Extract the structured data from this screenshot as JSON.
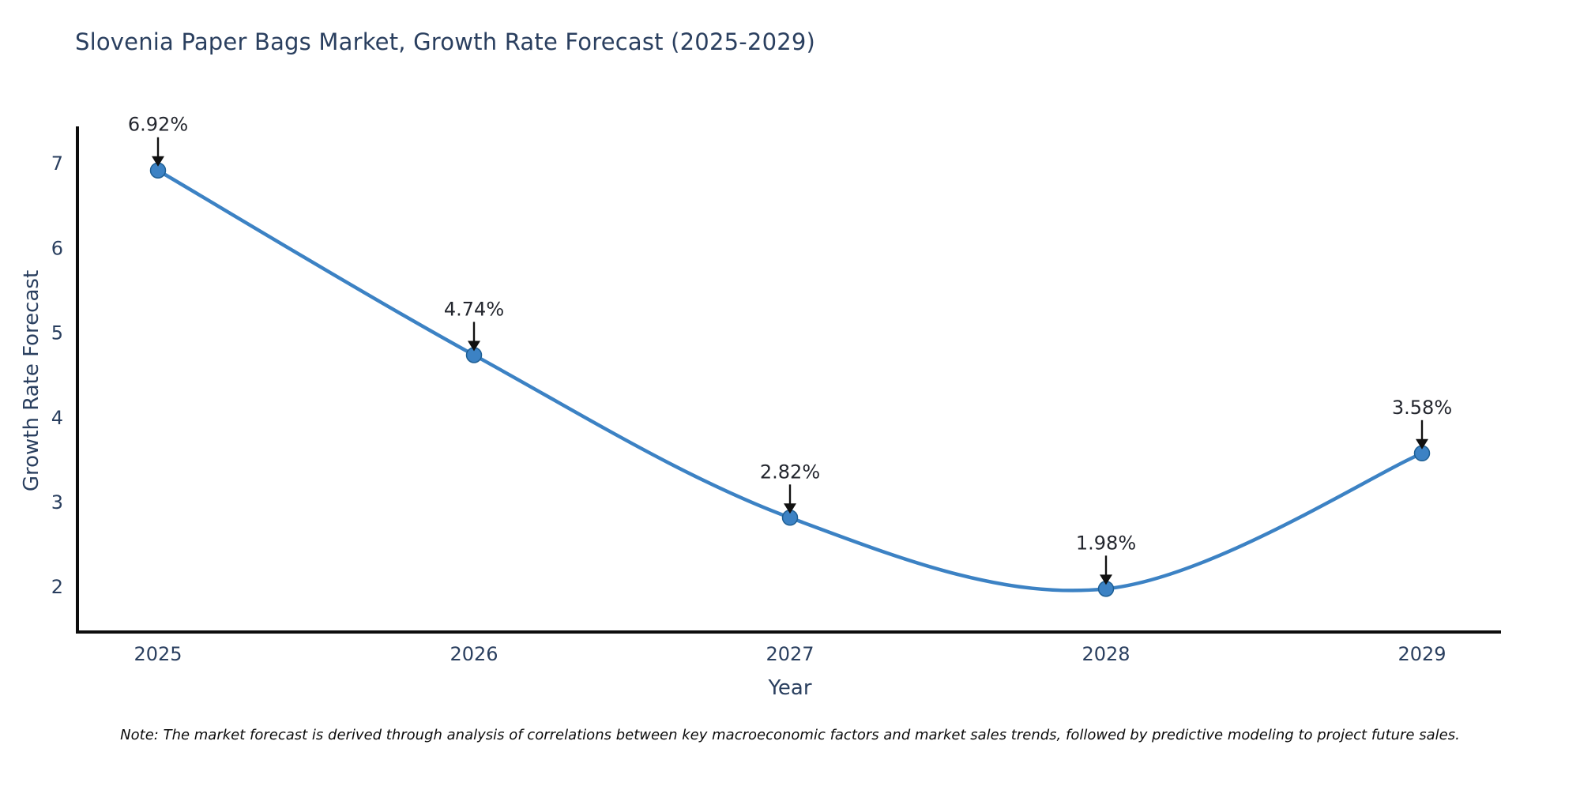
{
  "chart": {
    "title": "Slovenia Paper Bags Market, Growth Rate Forecast (2025-2029)",
    "xlabel": "Year",
    "ylabel": "Growth Rate Forecast",
    "note": "Note: The market forecast is derived through analysis of correlations between key macroeconomic factors and market sales trends, followed by predictive modeling to project future sales."
  },
  "chart_data": {
    "type": "line",
    "title": "Slovenia Paper Bags Market, Growth Rate Forecast (2025-2029)",
    "xlabel": "Year",
    "ylabel": "Growth Rate Forecast",
    "categories": [
      2025,
      2026,
      2027,
      2028,
      2029
    ],
    "series": [
      {
        "name": "Growth Rate Forecast",
        "values": [
          6.92,
          4.74,
          2.82,
          1.98,
          3.58
        ],
        "point_labels": [
          "6.92%",
          "4.74%",
          "2.82%",
          "1.98%",
          "3.58%"
        ]
      }
    ],
    "yticks": [
      2,
      3,
      4,
      5,
      6,
      7
    ],
    "xlim": [
      2024.745,
      2029.25
    ],
    "ylim": [
      1.47,
      7.44
    ],
    "grid": false,
    "legend_position": "none",
    "line_smoothing": "spline",
    "colors": {
      "line": "#3c82c4",
      "marker_fill": "#3c82c4",
      "marker_edge": "#1f5f94",
      "annotation_arrow": "#111111",
      "annotation_text": "#23262e",
      "axis_spine": "#0d0d0d",
      "text": "#2a3f5f"
    }
  }
}
